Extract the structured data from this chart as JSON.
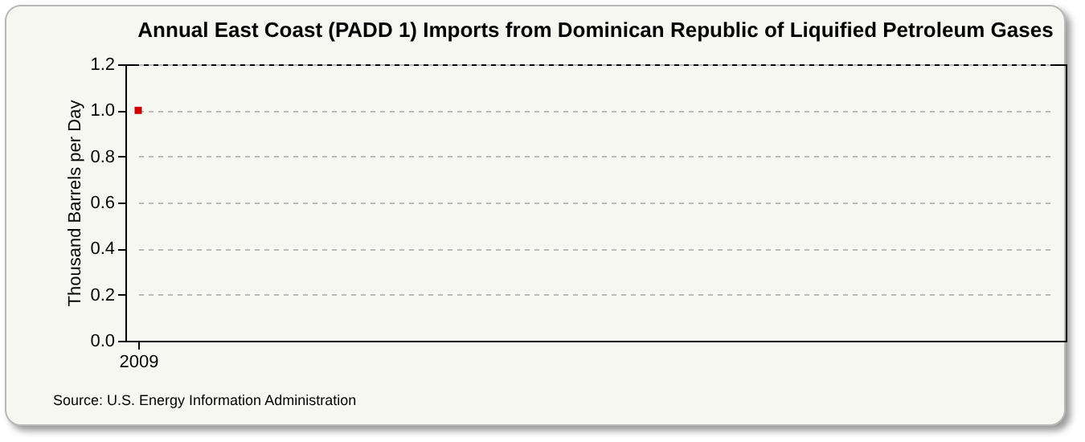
{
  "chart_data": {
    "type": "line",
    "title": "Annual East Coast (PADD 1) Imports from Dominican Republic of Liquified Petroleum Gases",
    "ylabel": "Thousand Barrels per Day",
    "categories": [
      "2009"
    ],
    "series": [
      {
        "color": "#cc0000",
        "values": [
          1.0
        ]
      }
    ],
    "ylim": [
      0,
      1.2
    ],
    "yticks": [
      {
        "value": 0,
        "label": "0.0"
      },
      {
        "value": 0.2,
        "label": "0.2"
      },
      {
        "value": 0.4,
        "label": "0.4"
      },
      {
        "value": 0.6,
        "label": "0.6"
      },
      {
        "value": 0.8,
        "label": "0.8"
      },
      {
        "value": 1,
        "label": "1.0"
      },
      {
        "value": 1.2,
        "label": "1.2"
      }
    ],
    "grid": "y",
    "marker": "square",
    "annotations": [
      "Source: U.S. Energy Information Administration"
    ]
  }
}
